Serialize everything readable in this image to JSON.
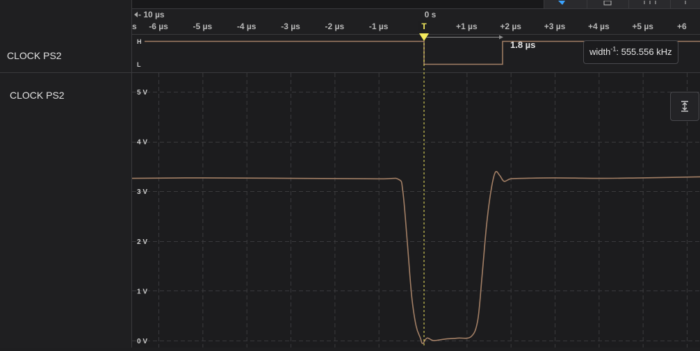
{
  "timeline": {
    "offset_label": "- 10 µs",
    "zero_label": "0 s",
    "ticks": [
      "s",
      "-6 µs",
      "-5 µs",
      "-4 µs",
      "-3 µs",
      "-2 µs",
      "-1 µs",
      "+1 µs",
      "+2 µs",
      "+3 µs",
      "+4 µs",
      "+5 µs",
      "+6"
    ]
  },
  "digital_channel": {
    "label": "CLOCK PS2",
    "high_label": "H",
    "low_label": "L"
  },
  "trigger": {
    "label": "T"
  },
  "measurement": {
    "width": "1.8 µs",
    "freq_prefix": "width",
    "freq_sup": "-1",
    "freq_value": ": 555.556 kHz"
  },
  "analog_channel": {
    "label": "CLOCK PS2",
    "y_ticks": [
      "5 V",
      "4 V",
      "3 V",
      "2 V",
      "1 V",
      "0 V"
    ]
  },
  "chart_data": {
    "type": "line",
    "title": "",
    "xlabel": "",
    "ylabel": "",
    "x_unit": "µs",
    "xlim": [
      -6.6,
      6.3
    ],
    "ylim": [
      0,
      5.0
    ],
    "grid": true,
    "series": [
      {
        "name": "CLOCK PS2",
        "color": "#a48066",
        "x": [
          -6.6,
          -5.0,
          -3.0,
          -1.0,
          -0.55,
          -0.45,
          -0.35,
          -0.25,
          -0.15,
          -0.05,
          0.0,
          0.1,
          0.25,
          0.5,
          0.8,
          1.1,
          1.25,
          1.35,
          1.45,
          1.55,
          1.65,
          1.75,
          1.85,
          2.0,
          2.3,
          3.0,
          4.0,
          5.0,
          6.3
        ],
        "y": [
          3.26,
          3.27,
          3.26,
          3.25,
          3.24,
          3.0,
          2.0,
          0.9,
          0.3,
          0.05,
          -0.06,
          0.05,
          0.0,
          0.03,
          0.05,
          0.08,
          0.4,
          1.3,
          2.3,
          3.0,
          3.38,
          3.32,
          3.2,
          3.25,
          3.26,
          3.27,
          3.26,
          3.27,
          3.29
        ]
      }
    ]
  },
  "colors": {
    "waveform": "#a48066",
    "trigger": "#f3ea5d",
    "background": "#1c1c1e",
    "grid": "#3a3a3d"
  }
}
